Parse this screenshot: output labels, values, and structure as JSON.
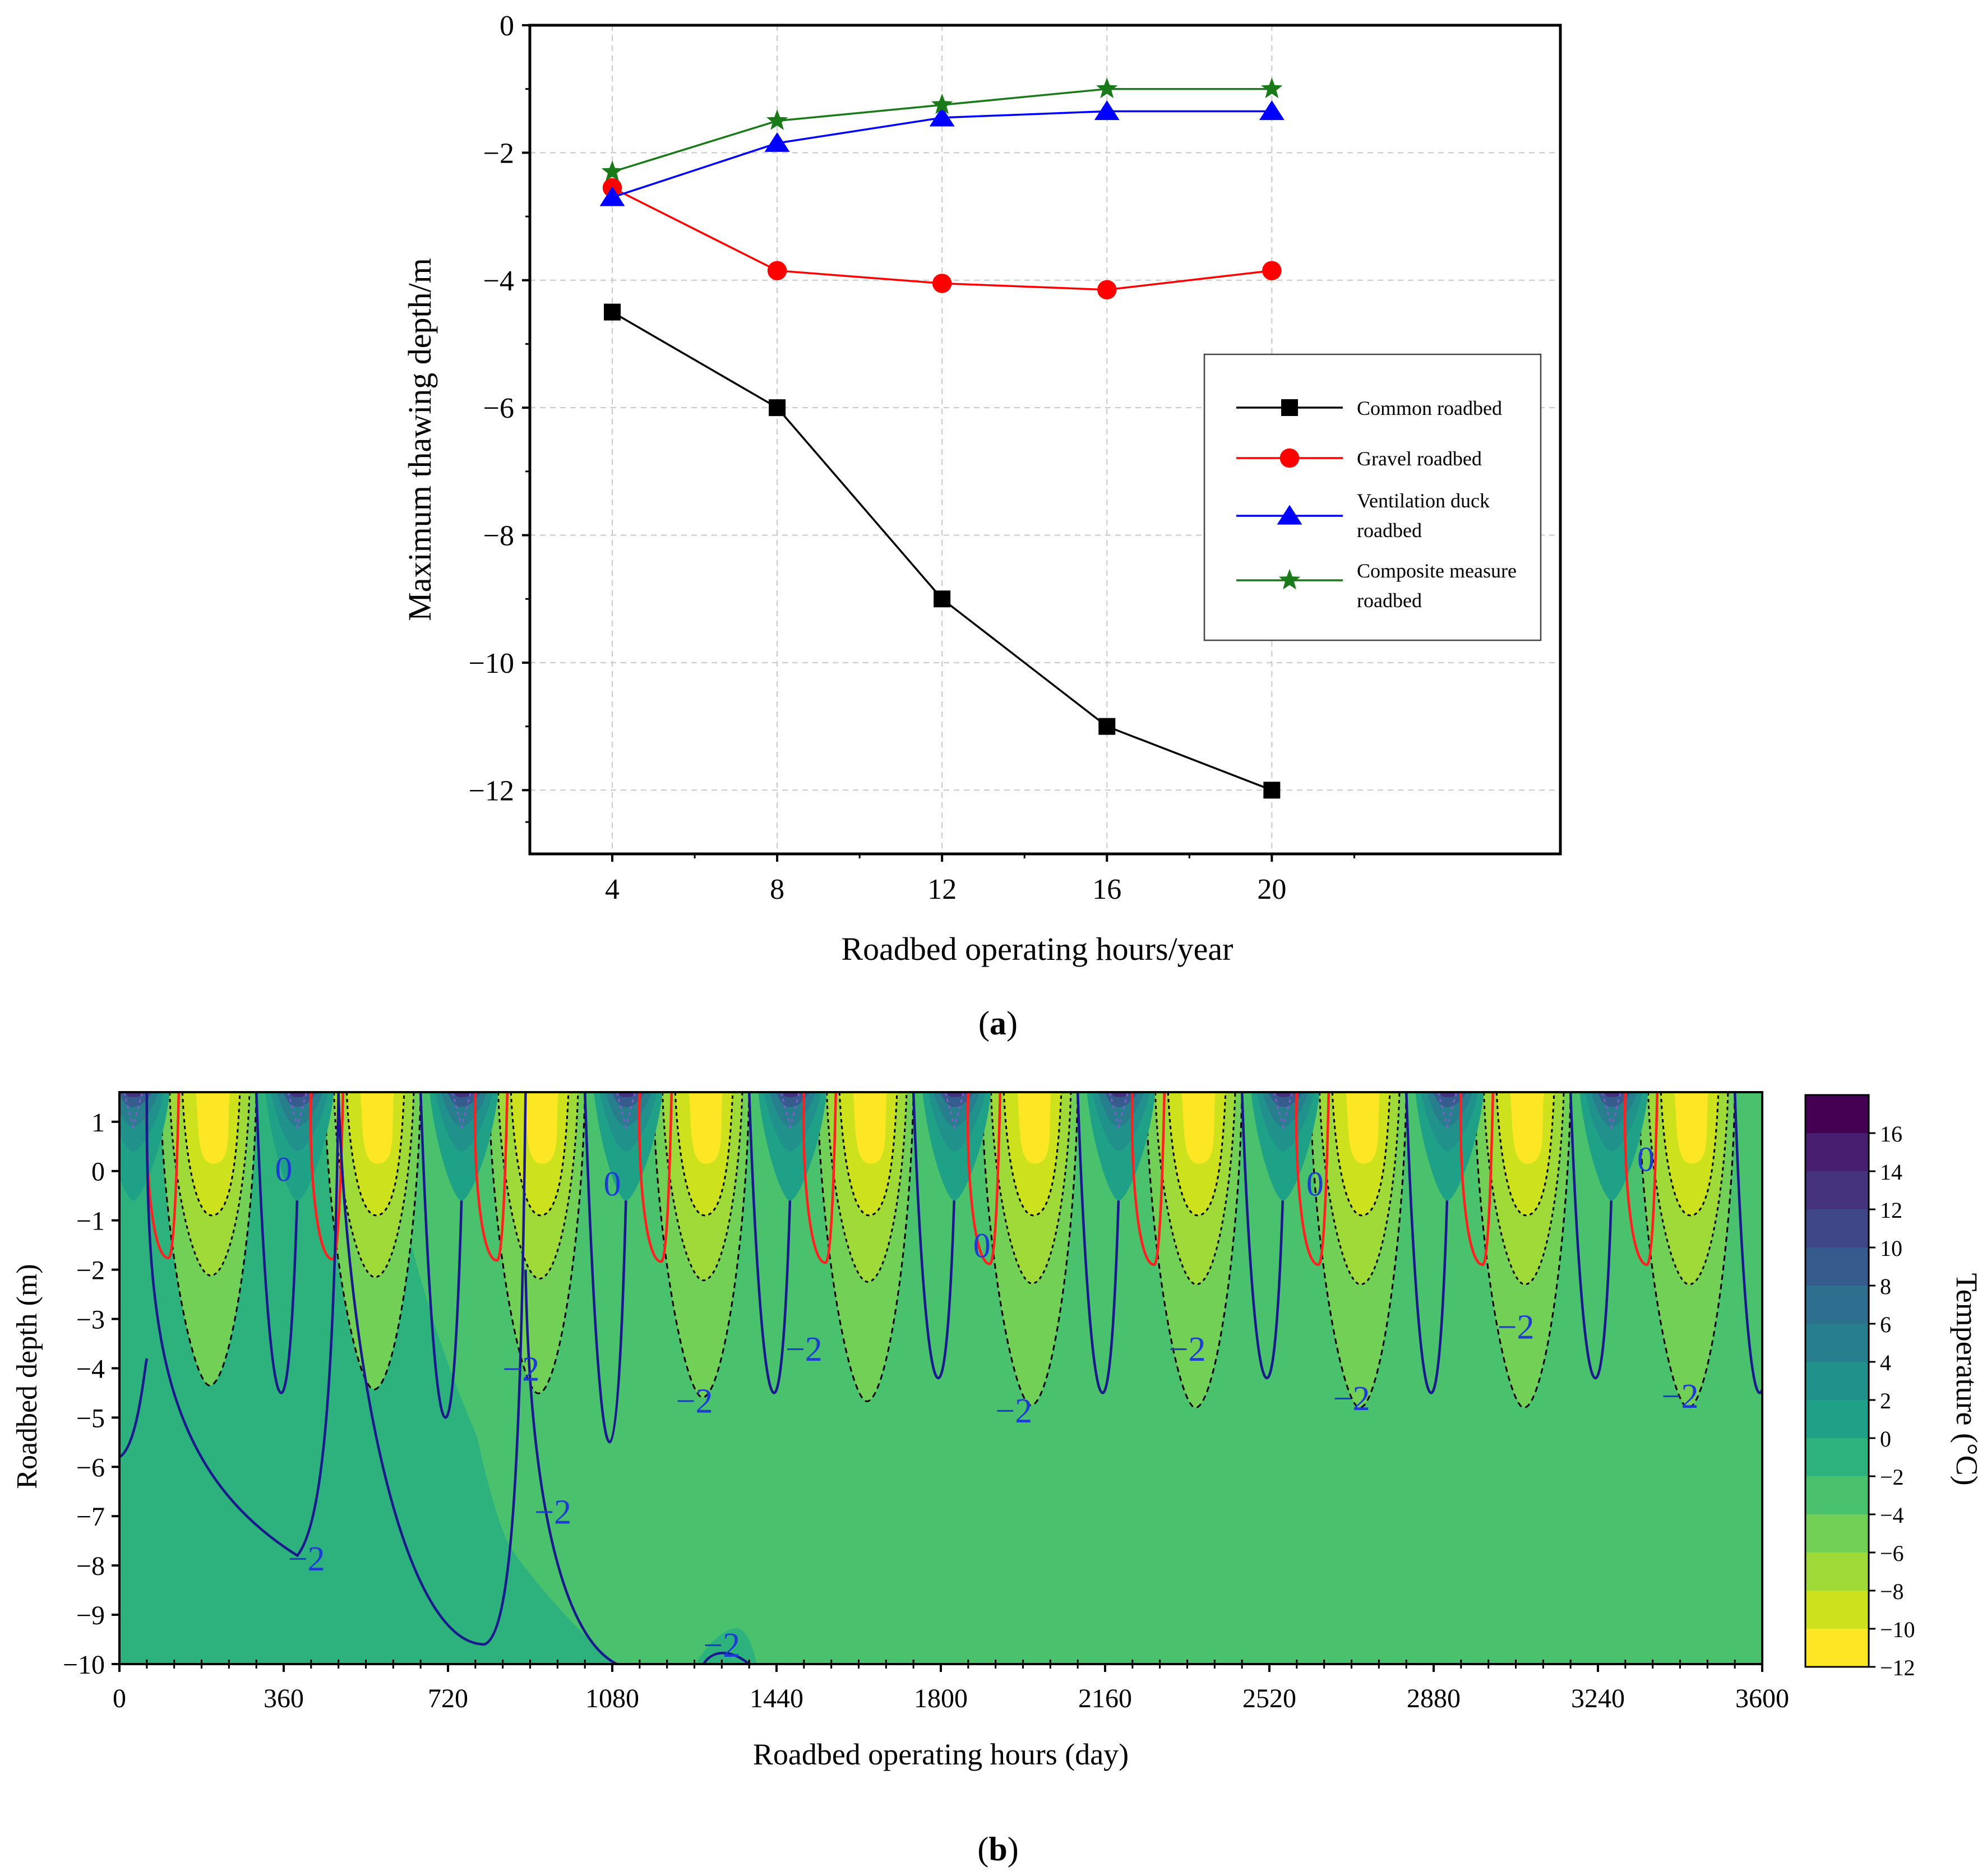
{
  "chart_data": [
    {
      "type": "line",
      "panel_label": "(a)",
      "panel_letter": "a",
      "xlabel": "Roadbed operating hours/year",
      "ylabel": "Maximum thawing depth/m",
      "xlim": [
        2,
        27
      ],
      "ylim": [
        -13,
        0
      ],
      "x": [
        4,
        8,
        12,
        16,
        20
      ],
      "xticks": [
        "4",
        "8",
        "12",
        "16",
        "20"
      ],
      "yticks": [
        "0",
        "−2",
        "−4",
        "−6",
        "−8",
        "−10",
        "−12"
      ],
      "ytick_values": [
        0,
        -2,
        -4,
        -6,
        -8,
        -10,
        -12
      ],
      "grid": true,
      "legend_position": "right-middle",
      "series": [
        {
          "name": "Common roadbed",
          "legend_lines": [
            "Common roadbed"
          ],
          "color": "#000000",
          "marker": "square",
          "values": [
            -4.5,
            -6.0,
            -9.0,
            -11.0,
            -12.0
          ]
        },
        {
          "name": "Gravel roadbed",
          "legend_lines": [
            "Gravel roadbed"
          ],
          "color": "#ff0000",
          "marker": "circle",
          "values": [
            -2.55,
            -3.85,
            -4.05,
            -4.15,
            -3.85
          ]
        },
        {
          "name": "Ventilation duck roadbed",
          "legend_lines": [
            "Ventilation duck",
            "roadbed"
          ],
          "color": "#0000ff",
          "marker": "triangle",
          "values": [
            -2.7,
            -1.85,
            -1.45,
            -1.35,
            -1.35
          ]
        },
        {
          "name": "Composite measure roadbed",
          "legend_lines": [
            "Composite measure",
            "roadbed"
          ],
          "color": "#1a7a1a",
          "marker": "star",
          "values": [
            -2.3,
            -1.5,
            -1.25,
            -1.0,
            -1.0
          ]
        }
      ]
    },
    {
      "type": "heatmap",
      "subtype": "filled-contour",
      "panel_label": "(b)",
      "panel_letter": "b",
      "xlabel": "Roadbed operating hours (day)",
      "ylabel": "Roadbed depth (m)",
      "xlim": [
        0,
        3600
      ],
      "ylim": [
        -10,
        1.6
      ],
      "xticks": [
        "0",
        "360",
        "720",
        "1080",
        "1440",
        "1800",
        "2160",
        "2520",
        "2880",
        "3240",
        "3600"
      ],
      "xtick_values": [
        0,
        360,
        720,
        1080,
        1440,
        1800,
        2160,
        2520,
        2880,
        3240,
        3600
      ],
      "yticks": [
        "1",
        "0",
        "−1",
        "−2",
        "−3",
        "−4",
        "−5",
        "−6",
        "−7",
        "−8",
        "−9",
        "−10"
      ],
      "ytick_values": [
        1,
        0,
        -1,
        -2,
        -3,
        -4,
        -5,
        -6,
        -7,
        -8,
        -9,
        -10
      ],
      "colorbar": {
        "label": "Temperature (°C)",
        "range": [
          -12,
          18
        ],
        "ticks": [
          "16",
          "14",
          "12",
          "10",
          "8",
          "6",
          "4",
          "2",
          "0",
          "−2",
          "−4",
          "−6",
          "−8",
          "−10",
          "−12"
        ],
        "tick_values": [
          16,
          14,
          12,
          10,
          8,
          6,
          4,
          2,
          0,
          -2,
          -4,
          -6,
          -8,
          -10,
          -12
        ],
        "levels": [
          {
            "from": -12,
            "to": -10,
            "color": "#fde725"
          },
          {
            "from": -10,
            "to": -8,
            "color": "#cde11d"
          },
          {
            "from": -8,
            "to": -6,
            "color": "#a0da39"
          },
          {
            "from": -6,
            "to": -4,
            "color": "#73d056"
          },
          {
            "from": -4,
            "to": -2,
            "color": "#4ac16d"
          },
          {
            "from": -2,
            "to": 0,
            "color": "#2db27d"
          },
          {
            "from": 0,
            "to": 2,
            "color": "#1fa187"
          },
          {
            "from": 2,
            "to": 4,
            "color": "#21918c"
          },
          {
            "from": 4,
            "to": 6,
            "color": "#277f8e"
          },
          {
            "from": 6,
            "to": 8,
            "color": "#2e6e8e"
          },
          {
            "from": 8,
            "to": 10,
            "color": "#365c8d"
          },
          {
            "from": 10,
            "to": 12,
            "color": "#3f4788"
          },
          {
            "from": 12,
            "to": 14,
            "color": "#46337e"
          },
          {
            "from": 14,
            "to": 16,
            "color": "#481f70"
          },
          {
            "from": 16,
            "to": 18,
            "color": "#440154"
          }
        ]
      },
      "contour_labels": [
        {
          "text": "0",
          "x": 360,
          "y": 0.05
        },
        {
          "text": "0",
          "x": 1080,
          "y": -0.25
        },
        {
          "text": "0",
          "x": 1890,
          "y": -1.5
        },
        {
          "text": "0",
          "x": 2620,
          "y": -0.25
        },
        {
          "text": "0",
          "x": 3345,
          "y": 0.25
        },
        {
          "text": "−2",
          "x": 410,
          "y": -7.85
        },
        {
          "text": "−2",
          "x": 880,
          "y": -4.0
        },
        {
          "text": "−2",
          "x": 950,
          "y": -6.9
        },
        {
          "text": "−2",
          "x": 1260,
          "y": -4.65
        },
        {
          "text": "−2",
          "x": 1500,
          "y": -3.6
        },
        {
          "text": "−2",
          "x": 1960,
          "y": -4.85
        },
        {
          "text": "−2",
          "x": 2340,
          "y": -3.6
        },
        {
          "text": "−2",
          "x": 2700,
          "y": -4.6
        },
        {
          "text": "−2",
          "x": 3060,
          "y": -3.15
        },
        {
          "text": "−2",
          "x": 3420,
          "y": -4.55
        },
        {
          "text": "−2",
          "x": 1320,
          "y": -9.6
        }
      ]
    }
  ]
}
